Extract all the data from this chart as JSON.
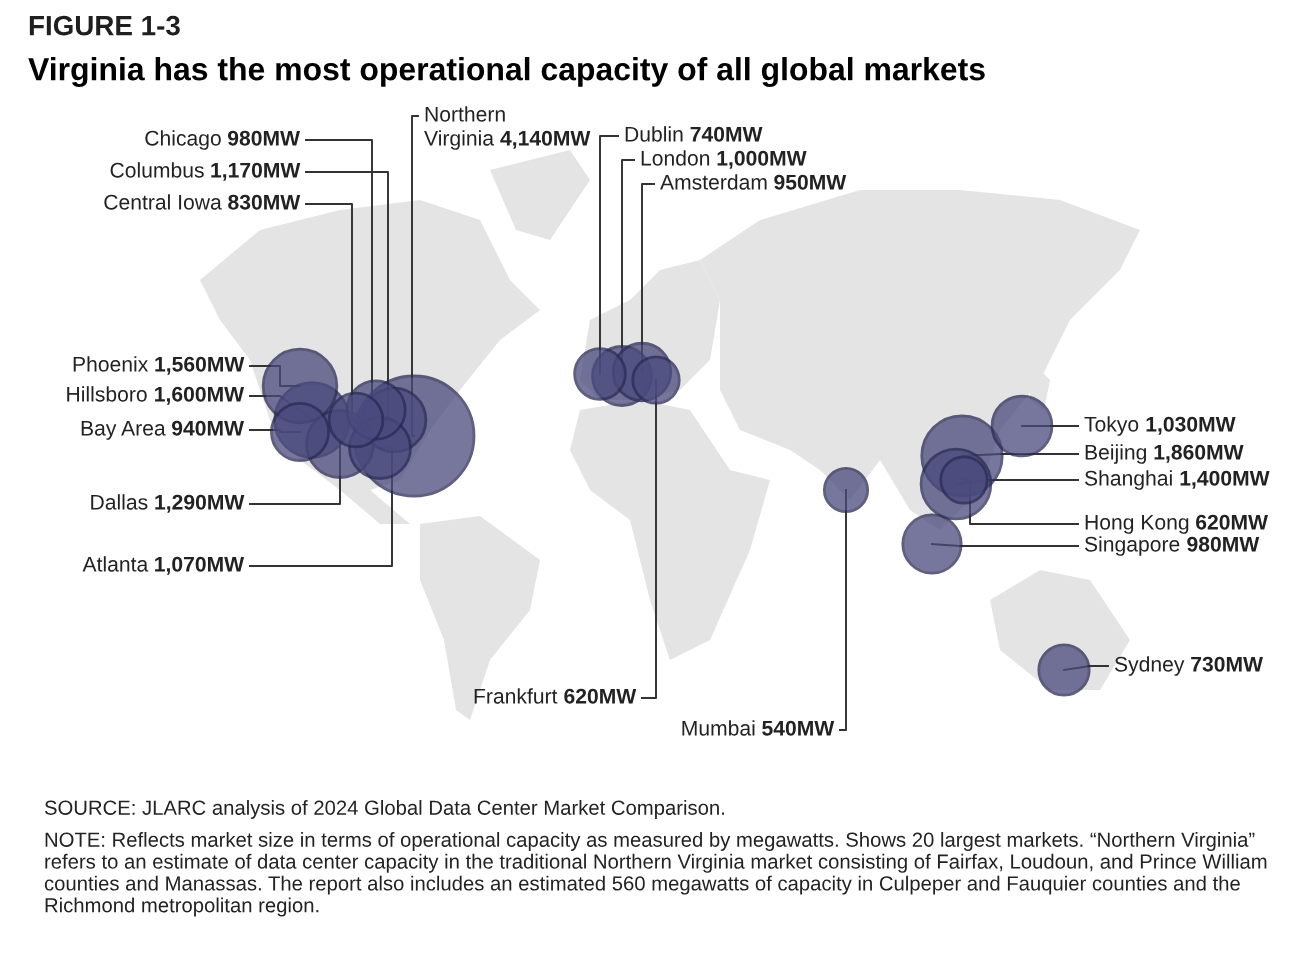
{
  "chart_data": {
    "type": "other",
    "title": "FIGURE 1-3",
    "subtitle": "Virginia has the most operational capacity of all global markets",
    "categories": [
      "Chicago",
      "Columbus",
      "Central Iowa",
      "Northern\nVirginia",
      "Dublin",
      "London",
      "Amsterdam",
      "Phoenix",
      "Hillsboro",
      "Bay Area",
      "Dallas",
      "Atlanta",
      "Tokyo",
      "Beijing",
      "Shanghai",
      "Hong Kong",
      "Singapore",
      "Frankfurt",
      "Mumbai",
      "Sydney"
    ],
    "values": [
      980,
      1170,
      830,
      4140,
      740,
      1000,
      950,
      1560,
      1600,
      940,
      1290,
      1070,
      1030,
      1860,
      1400,
      620,
      980,
      620,
      540,
      730
    ],
    "value_labels": [
      "980MW",
      "1,170MW",
      "830MW",
      "4,140MW",
      "740MW",
      "1,000MW",
      "950MW",
      "1,560MW",
      "1,600MW",
      "940MW",
      "1,290MW",
      "1,070MW",
      "1,030MW",
      "1,860MW",
      "1,400MW",
      "620MW",
      "980MW",
      "620MW",
      "540MW",
      "730MW"
    ],
    "color": "#4a4a7e",
    "annotations": [
      "SOURCE: JLARC analysis of 2024 Global Data Center Market Comparison.",
      "NOTE: Reflects market size in terms of operational capacity as measured by megawatts. Shows 20 largest markets. “Northern Virginia” refers to an estimate of data center capacity in the traditional Northern Virginia market consisting of Fairfax, Loudoun, and Prince William counties and Manassas. The report also includes an estimated 560 megawatts of capacity in Culpeper and Fauquier counties and the Richmond metropolitan region."
    ]
  }
}
